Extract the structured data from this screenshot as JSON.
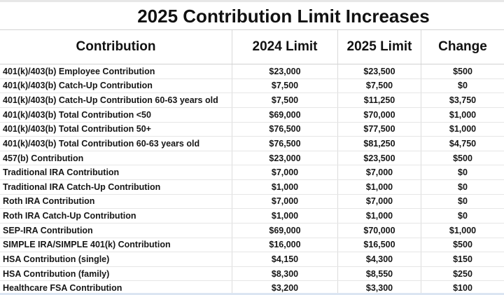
{
  "title": "2025 Contribution Limit Increases",
  "table": {
    "columns": [
      "Contribution",
      "2024 Limit",
      "2025 Limit",
      "Change"
    ],
    "rows": [
      {
        "label": "401(k)/403(b) Employee Contribution",
        "limit_2024": "$23,000",
        "limit_2025": "$23,500",
        "change": "$500"
      },
      {
        "label": "401(k)/403(b) Catch-Up Contribution",
        "limit_2024": "$7,500",
        "limit_2025": "$7,500",
        "change": "$0"
      },
      {
        "label": "401(k)/403(b) Catch-Up Contribution 60-63 years old",
        "limit_2024": "$7,500",
        "limit_2025": "$11,250",
        "change": "$3,750"
      },
      {
        "label": "401(k)/403(b) Total Contribution <50",
        "limit_2024": "$69,000",
        "limit_2025": "$70,000",
        "change": "$1,000"
      },
      {
        "label": "401(k)/403(b) Total Contribution 50+",
        "limit_2024": "$76,500",
        "limit_2025": "$77,500",
        "change": "$1,000"
      },
      {
        "label": "401(k)/403(b) Total Contribution 60-63 years old",
        "limit_2024": "$76,500",
        "limit_2025": "$81,250",
        "change": "$4,750"
      },
      {
        "label": "457(b) Contribution",
        "limit_2024": "$23,000",
        "limit_2025": "$23,500",
        "change": "$500"
      },
      {
        "label": "Traditional IRA Contribution",
        "limit_2024": "$7,000",
        "limit_2025": "$7,000",
        "change": "$0"
      },
      {
        "label": "Traditional IRA Catch-Up Contribution",
        "limit_2024": "$1,000",
        "limit_2025": "$1,000",
        "change": "$0"
      },
      {
        "label": "Roth IRA Contribution",
        "limit_2024": "$7,000",
        "limit_2025": "$7,000",
        "change": "$0"
      },
      {
        "label": "Roth IRA Catch-Up Contribution",
        "limit_2024": "$1,000",
        "limit_2025": "$1,000",
        "change": "$0"
      },
      {
        "label": "SEP-IRA Contribution",
        "limit_2024": "$69,000",
        "limit_2025": "$70,000",
        "change": "$1,000"
      },
      {
        "label": "SIMPLE IRA/SIMPLE 401(k) Contribution",
        "limit_2024": "$16,000",
        "limit_2025": "$16,500",
        "change": "$500"
      },
      {
        "label": "HSA Contribution (single)",
        "limit_2024": "$4,150",
        "limit_2025": "$4,300",
        "change": "$150"
      },
      {
        "label": "HSA Contribution (family)",
        "limit_2024": "$8,300",
        "limit_2025": "$8,550",
        "change": "$250"
      },
      {
        "label": "Healthcare FSA Contribution",
        "limit_2024": "$3,200",
        "limit_2025": "$3,300",
        "change": "$100"
      }
    ]
  },
  "colors": {
    "text": "#141414",
    "gridline_vertical": "#dcdcdc",
    "gridline_horizontal": "#e6e6e6",
    "header_border": "#d2d2d2",
    "top_band": "#e7e7e7",
    "bottom_strip": "#dbe5f2",
    "background": "#ffffff"
  }
}
